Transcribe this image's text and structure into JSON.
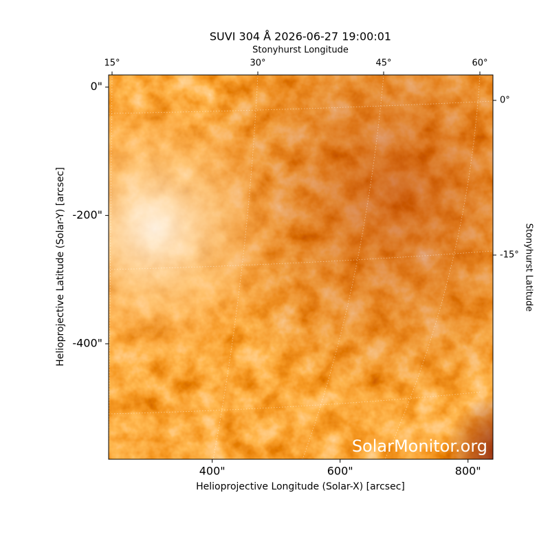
{
  "chart_data": {
    "type": "image",
    "title": "SUVI 304 Å 2026-06-27 19:00:01",
    "xlabel": "Helioprojective Longitude (Solar-X) [arcsec]",
    "ylabel": "Helioprojective Latitude (Solar-Y) [arcsec]",
    "top_label": "Stonyhurst Longitude",
    "right_label": "Stonyhurst Latitude",
    "xlim": [
      238,
      839
    ],
    "ylim": [
      -580,
      19
    ],
    "xticks": [
      {
        "value": 400,
        "label": "400\""
      },
      {
        "value": 600,
        "label": "600\""
      },
      {
        "value": 800,
        "label": "800\""
      }
    ],
    "yticks": [
      {
        "value": 0,
        "label": "0\""
      },
      {
        "value": -200,
        "label": "-200\""
      },
      {
        "value": -400,
        "label": "-400\""
      }
    ],
    "top_ticks": [
      {
        "value": 15,
        "label": "15°"
      },
      {
        "value": 30,
        "label": "30°"
      },
      {
        "value": 45,
        "label": "45°"
      },
      {
        "value": 60,
        "label": "60°"
      }
    ],
    "right_ticks": [
      {
        "value": 0,
        "label": "0°"
      },
      {
        "value": -15,
        "label": "-15°"
      }
    ],
    "watermark": "SolarMonitor.org"
  }
}
